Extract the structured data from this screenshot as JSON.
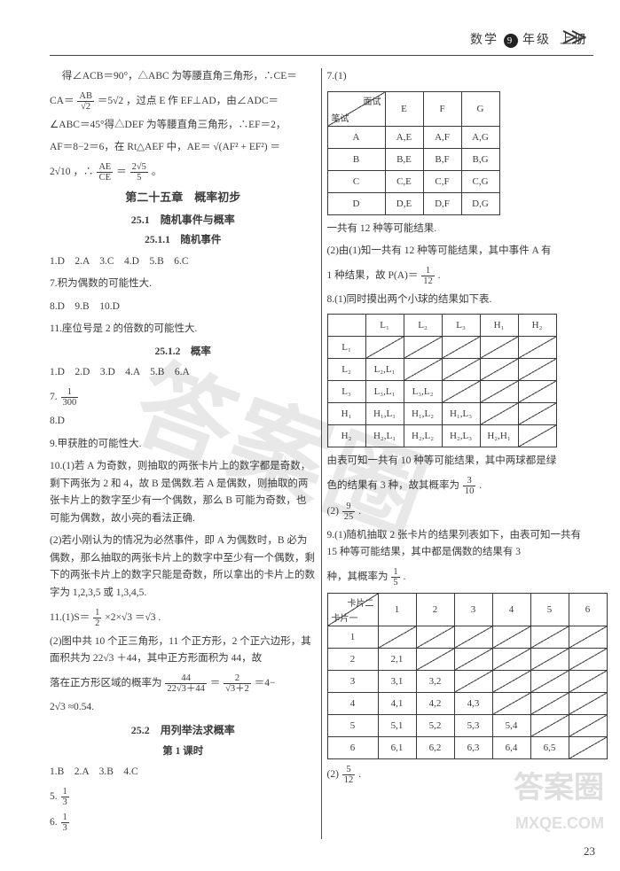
{
  "header": {
    "subject": "数学",
    "grade": "9",
    "grade_suffix": "年级",
    "volume": "上册"
  },
  "colors": {
    "text": "#3b3b3b",
    "rule": "#444444",
    "bg": "#ffffff"
  },
  "s1": {
    "l1a": "得∠ACB＝90°，△ABC 为等腰直角三角形，∴CE＝",
    "l1b": "CA＝",
    "l1c": "＝5",
    "l1d": "，过点 E 作 EF⊥AD，由∠ADC＝",
    "l2": "∠ABC＝45°得△DEF 为等腰直角三角形，∴EF＝2，",
    "l3a": "AF＝8−2＝6，在 Rt△AEF 中，AE＝",
    "l3b": "＝",
    "l4a": "2",
    "l4b": "，∴",
    "l4c": "＝",
    "l4d": "。",
    "frac_ab_num": "AB",
    "frac_ab_den": "√2",
    "sqrt2": "√2",
    "sqrtAE": "√(AF² + EF²)",
    "sqrt10": "√10",
    "frac_aece_num": "AE",
    "frac_aece_den": "CE",
    "frac_25_num": "2√5",
    "frac_25_den": "5"
  },
  "titles": {
    "ch": "第二十五章　概率初步",
    "s251": "25.1　随机事件与概率",
    "s2511": "25.1.1　随机事件",
    "s2512": "25.1.2　概率",
    "s252": "25.2　用列举法求概率",
    "k1": "第 1 课时"
  },
  "a2511": {
    "row1": "1.D　2.A　3.C　4.D　5.B　6.C",
    "q7": "7.积为偶数的可能性大.",
    "row2": "8.D　9.B　10.D",
    "q11": "11.座位号是 2 的倍数的可能性大."
  },
  "a2512": {
    "row1": "1.D　2.D　3.D　4.A　5.B　6.A",
    "q7a": "7.",
    "q7_num": "1",
    "q7_den": "300",
    "q8": "8.D",
    "q9": "9.甲获胜的可能性大.",
    "q10_1": "10.(1)若 A 为奇数，则抽取的两张卡片上的数字都是奇数，剩下两张为 2 和 4，故 B 是偶数.若 A 是偶数，则抽取的两张卡片上的数字至少有一个偶数，那么 B 可能为奇数，也可能为偶数，故小亮的看法正确.",
    "q10_2": "(2)若小刚认为的情况为必然事件，即 A 为偶数时，B 必为偶数，那么抽取的两张卡片上的数字中至少有一个偶数，剩下的两张卡片上的数字只能是奇数，所以拿出的卡片上的数字为 1,2,3,5 或 1,3,4,5.",
    "q11_1a": "11.(1)S＝",
    "q11_1_num": "1",
    "q11_1_den": "2",
    "q11_1b": "×2×",
    "q11_1c": "＝",
    "q11_1d": ".",
    "sqrt3": "√3",
    "q11_2a": "(2)图中共 10 个正三角形，11 个正方形，2 个正六边形，其面积共为 22",
    "q11_2b": "＋44，其中正方形面积为 44，故",
    "q11_3a": "落在正方形区域的概率为",
    "q11_f1_num": "44",
    "q11_f1_den": "22√3＋44",
    "q11_3b": "＝",
    "q11_f2_num": "2",
    "q11_f2_den": "√3＋2",
    "q11_3c": "＝4−",
    "q11_4a": "2",
    "q11_4b": "≈0.54."
  },
  "a252": {
    "row1": "1.B　2.A　3.B　4.C",
    "q5a": "5.",
    "q5_num": "1",
    "q5_den": "3",
    "q6a": "6.",
    "q6_num": "1",
    "q6_den": "3",
    "q7a": "7.(1)",
    "q7_table": {
      "tl": "笔试",
      "br": "面试",
      "cols": [
        "E",
        "F",
        "G"
      ],
      "rows": [
        {
          "h": "A",
          "c": [
            "A,E",
            "A,F",
            "A,G"
          ]
        },
        {
          "h": "B",
          "c": [
            "B,E",
            "B,F",
            "B,G"
          ]
        },
        {
          "h": "C",
          "c": [
            "C,E",
            "C,F",
            "C,G"
          ]
        },
        {
          "h": "D",
          "c": [
            "D,E",
            "D,F",
            "D,G"
          ]
        }
      ]
    },
    "q7_mid": "一共有 12 种等可能结果.",
    "q7_2a": "(2)由(1)知一共有 12 种等可能结果，其中事件 A 有",
    "q7_2b": "1 种结果，故 P(A)＝",
    "q7_2_num": "1",
    "q7_2_den": "12",
    "q7_2c": ".",
    "q8_1": "8.(1)同时摸出两个小球的结果如下表.",
    "q8_table": {
      "headers": [
        "",
        "L₁",
        "L₂",
        "L₃",
        "H₁",
        "H₂"
      ],
      "rowheads": [
        "L₁",
        "L₂",
        "L₃",
        "H₁",
        "H₂"
      ],
      "cells": [
        [
          "",
          "",
          "",
          "",
          ""
        ],
        [
          "L₂,L₁",
          "",
          "",
          "",
          ""
        ],
        [
          "L₃,L₁",
          "L₃,L₂",
          "",
          "",
          ""
        ],
        [
          "H₁,L₁",
          "H₁,L₂",
          "H₁,L₃",
          "",
          ""
        ],
        [
          "H₂,L₁",
          "H₂,L₂",
          "H₂,L₃",
          "H₂,H₁",
          ""
        ]
      ],
      "diag": [
        [
          0,
          0
        ],
        [
          0,
          1
        ],
        [
          0,
          2
        ],
        [
          0,
          3
        ],
        [
          0,
          4
        ],
        [
          1,
          1
        ],
        [
          1,
          2
        ],
        [
          1,
          3
        ],
        [
          1,
          4
        ],
        [
          2,
          2
        ],
        [
          2,
          3
        ],
        [
          2,
          4
        ],
        [
          3,
          3
        ],
        [
          3,
          4
        ],
        [
          4,
          4
        ]
      ]
    },
    "q8_2a": "由表可知一共有 10 种等可能结果，其中两球都是绿",
    "q8_2b": "色的结果有 3 种，故其概率为",
    "q8_f_num": "3",
    "q8_f_den": "10",
    "q8_2c": ".",
    "q8_3a": "(2)",
    "q8_3_num": "9",
    "q8_3_den": "25",
    "q8_3b": ".",
    "q9_1": "9.(1)随机抽取 2 张卡片的结果列表如下，由表可知一共有 15 种等可能结果，其中都是偶数的结果有 3",
    "q9_1b": "种，其概率为",
    "q9_f_num": "1",
    "q9_f_den": "5",
    "q9_1c": ".",
    "q9_table": {
      "tl": "卡片一",
      "br": "卡片二",
      "cols": [
        "1",
        "2",
        "3",
        "4",
        "5",
        "6"
      ],
      "rowheads": [
        "1",
        "2",
        "3",
        "4",
        "5",
        "6"
      ],
      "cells": [
        [
          "",
          "",
          "",
          "",
          "",
          ""
        ],
        [
          "2,1",
          "",
          "",
          "",
          "",
          ""
        ],
        [
          "3,1",
          "3,2",
          "",
          "",
          "",
          ""
        ],
        [
          "4,1",
          "4,2",
          "4,3",
          "",
          "",
          ""
        ],
        [
          "5,1",
          "5,2",
          "5,3",
          "5,4",
          "",
          ""
        ],
        [
          "6,1",
          "6,2",
          "6,3",
          "6,4",
          "6,5",
          ""
        ]
      ],
      "diag": [
        [
          0,
          0
        ],
        [
          0,
          1
        ],
        [
          0,
          2
        ],
        [
          0,
          3
        ],
        [
          0,
          4
        ],
        [
          0,
          5
        ],
        [
          1,
          1
        ],
        [
          1,
          2
        ],
        [
          1,
          3
        ],
        [
          1,
          4
        ],
        [
          1,
          5
        ],
        [
          2,
          2
        ],
        [
          2,
          3
        ],
        [
          2,
          4
        ],
        [
          2,
          5
        ],
        [
          3,
          3
        ],
        [
          3,
          4
        ],
        [
          3,
          5
        ],
        [
          4,
          4
        ],
        [
          4,
          5
        ],
        [
          5,
          5
        ]
      ]
    },
    "q9_2a": "(2)",
    "q9_2_num": "5",
    "q9_2_den": "12",
    "q9_2b": "."
  },
  "watermarks": {
    "big": "答案圈",
    "small1": "答案圈",
    "url": "MXQE.COM"
  },
  "page_number": "23"
}
